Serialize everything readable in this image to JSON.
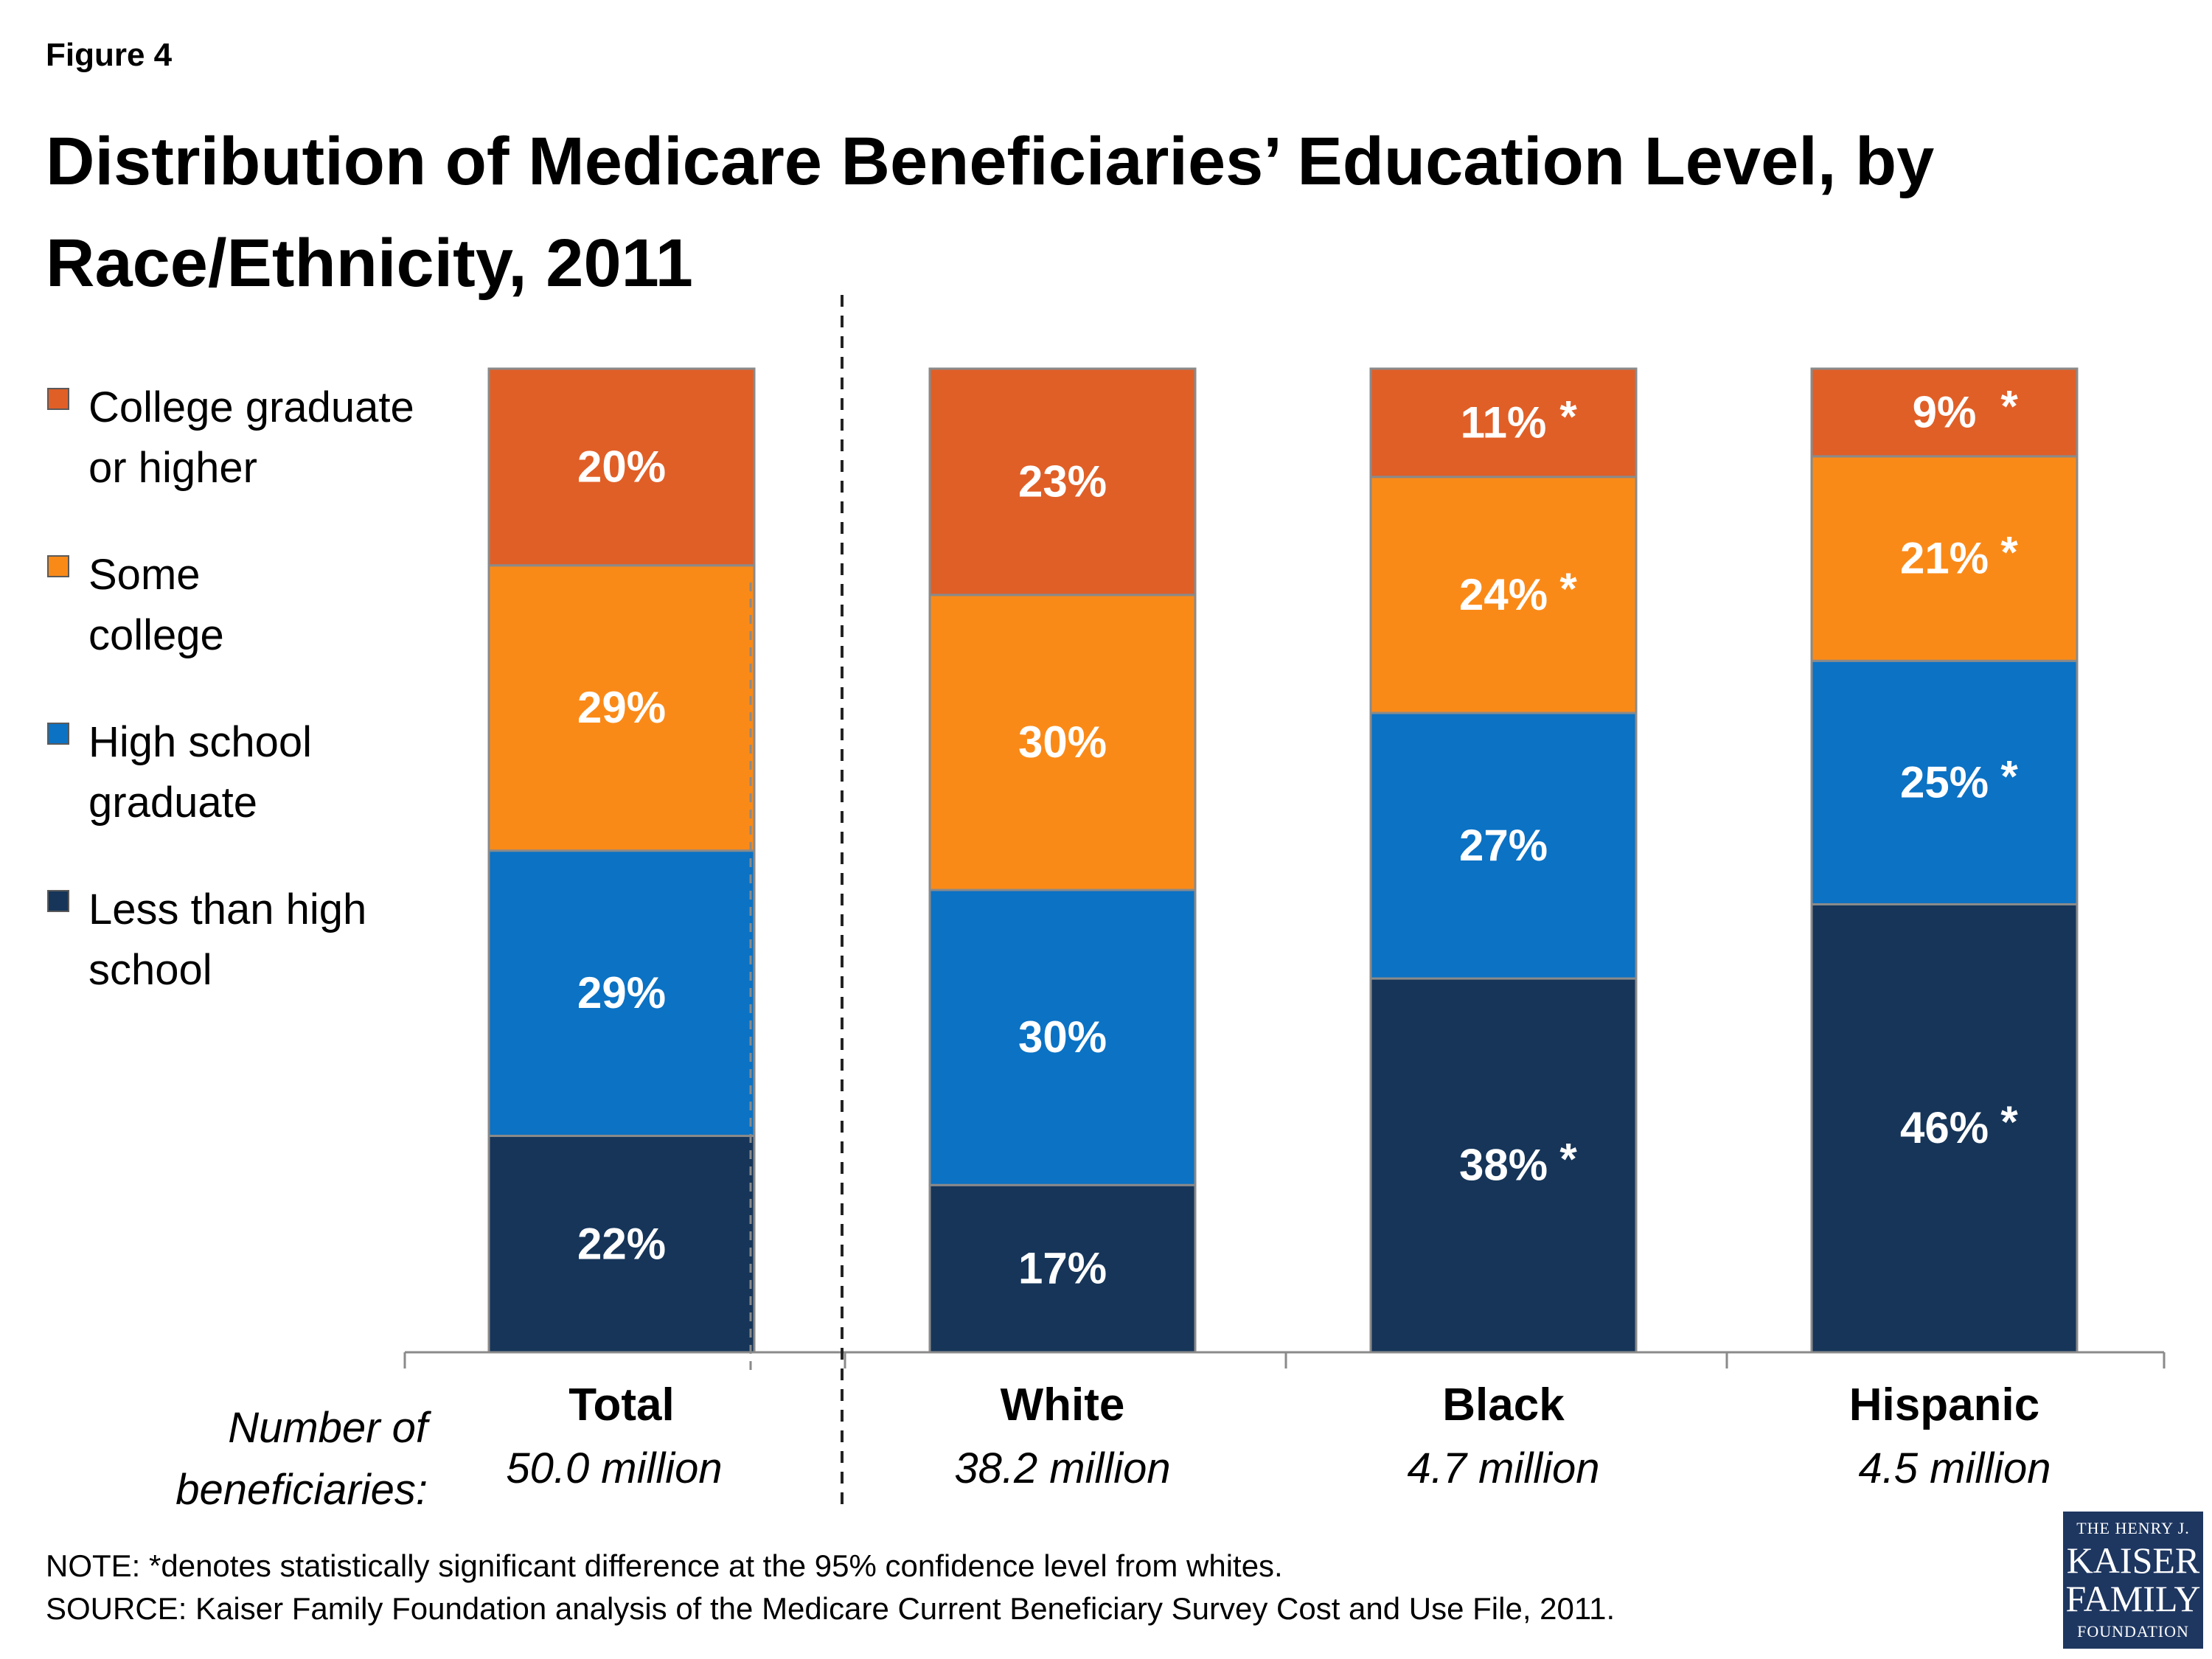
{
  "figure_label": "Figure 4",
  "title": "Distribution of Medicare Beneficiaries’ Education Level, by Race/Ethnicity, 2011",
  "chart_data": {
    "type": "bar",
    "stacked": true,
    "title": "Distribution of Medicare Beneficiaries’ Education Level, by Race/Ethnicity, 2011",
    "categories": [
      "Total",
      "White",
      "Black",
      "Hispanic"
    ],
    "category_counts": [
      "50.0 million",
      "38.2 million",
      "4.7 million",
      "4.5 million"
    ],
    "count_caption": [
      "Number of",
      "beneficiaries:"
    ],
    "ylim": [
      0,
      100
    ],
    "series": [
      {
        "name": "Less than high school",
        "legend_lines": [
          "Less than high",
          "school"
        ],
        "color": "#163559",
        "values": [
          22,
          17,
          38,
          46
        ],
        "labels": [
          "22%",
          "17%",
          "38%",
          "46%"
        ],
        "significant": [
          false,
          false,
          true,
          true
        ]
      },
      {
        "name": "High school graduate",
        "legend_lines": [
          "High school",
          "graduate"
        ],
        "color": "#0b72c4",
        "values": [
          29,
          30,
          27,
          25
        ],
        "labels": [
          "29%",
          "30%",
          "27%",
          "25%"
        ],
        "significant": [
          false,
          false,
          false,
          true
        ]
      },
      {
        "name": "Some college",
        "legend_lines": [
          "Some",
          "college"
        ],
        "color": "#fa8a18",
        "values": [
          29,
          30,
          24,
          21
        ],
        "labels": [
          "29%",
          "30%",
          "24%",
          "21%"
        ],
        "significant": [
          false,
          false,
          true,
          true
        ]
      },
      {
        "name": "College graduate or higher",
        "legend_lines": [
          "College graduate",
          "or higher"
        ],
        "color": "#e05f27",
        "values": [
          20,
          23,
          11,
          9
        ],
        "labels": [
          "20%",
          "23%",
          "11%",
          "9%"
        ],
        "significant": [
          false,
          false,
          true,
          true
        ]
      }
    ],
    "significance_marker": "*",
    "legend_position": "left"
  },
  "note": "NOTE: *denotes statistically significant difference at the 95% confidence level from whites.",
  "source": "SOURCE: Kaiser Family Foundation analysis of the Medicare Current Beneficiary Survey Cost and Use File, 2011.",
  "logo": {
    "line1": "THE HENRY J.",
    "line2": "KAISER",
    "line3": "FAMILY",
    "line4": "FOUNDATION"
  }
}
